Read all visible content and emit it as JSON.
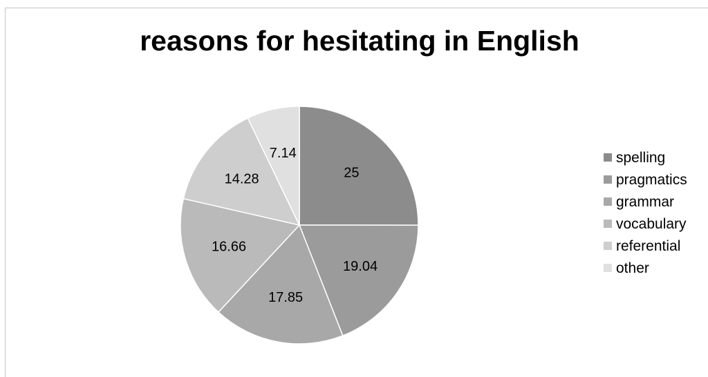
{
  "chart_data": {
    "type": "pie",
    "title": "reasons for hesitating in English",
    "legend_position": "right",
    "slices": [
      {
        "label": "spelling",
        "value": 25,
        "display": "25",
        "color": "#8c8c8c"
      },
      {
        "label": "pragmatics",
        "value": 19.04,
        "display": "19.04",
        "color": "#9b9b9b"
      },
      {
        "label": "grammar",
        "value": 17.85,
        "display": "17.85",
        "color": "#a8a8a8"
      },
      {
        "label": "vocabulary",
        "value": 16.66,
        "display": "16.66",
        "color": "#bababa"
      },
      {
        "label": "referential",
        "value": 14.28,
        "display": "14.28",
        "color": "#cecece"
      },
      {
        "label": "other",
        "value": 7.14,
        "display": "7.14",
        "color": "#e0e0e0"
      }
    ]
  }
}
